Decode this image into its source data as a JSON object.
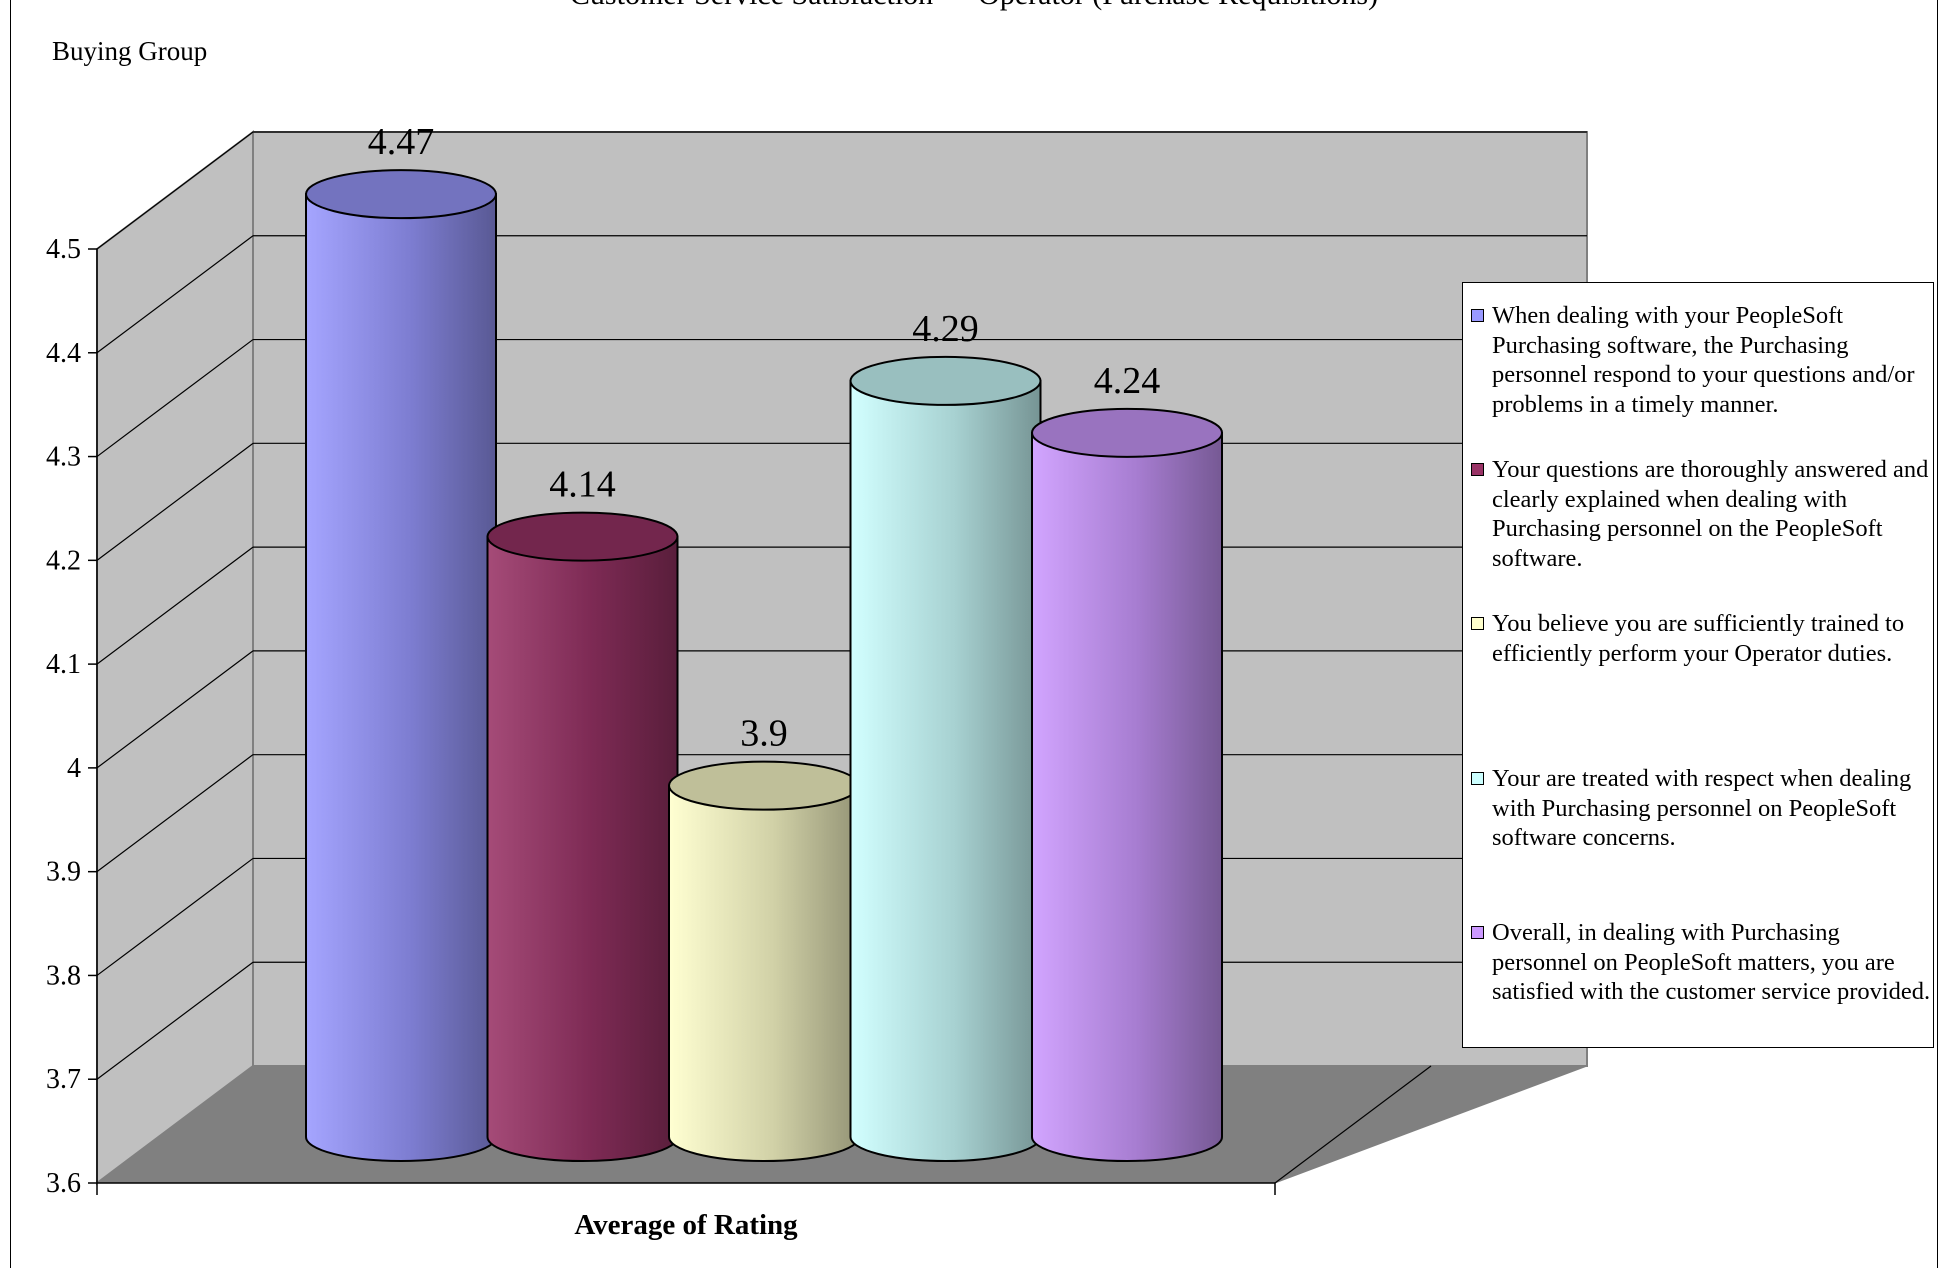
{
  "chart_data": {
    "type": "bar",
    "title": "Customer Service Satisfaction — Operator (Purchase Requisitions)",
    "pivot_label": "Buying Group",
    "xlabel": "Average of Rating",
    "ylabel": "",
    "ylim": [
      3.6,
      4.5
    ],
    "yticks": [
      "3.6",
      "3.7",
      "3.8",
      "3.9",
      "4",
      "4.1",
      "4.2",
      "4.3",
      "4.4",
      "4.5"
    ],
    "grid": true,
    "legend_position": "right",
    "categories": [
      "Average of Rating"
    ],
    "series": [
      {
        "name": "When dealing with your PeopleSoft Purchasing software, the Purchasing personnel respond to your questions and/or problems in a timely manner.",
        "values": [
          4.47
        ],
        "label": "4.47",
        "color": "#9999ff"
      },
      {
        "name": "Your questions are thoroughly answered and clearly explained when dealing with Purchasing personnel on the PeopleSoft software.",
        "values": [
          4.14
        ],
        "label": "4.14",
        "color": "#993366"
      },
      {
        "name": "You believe you are sufficiently trained to efficiently perform your Operator duties.",
        "values": [
          3.9
        ],
        "label": "3.9",
        "color": "#ffffcc"
      },
      {
        "name": "Your are treated with respect when dealing with Purchasing personnel on PeopleSoft software concerns.",
        "values": [
          4.29
        ],
        "label": "4.29",
        "color": "#ccffff"
      },
      {
        "name": "Overall, in dealing with Purchasing personnel on PeopleSoft matters, you are satisfied with the customer service provided.",
        "values": [
          4.24
        ],
        "label": "4.24",
        "color": "#cc99ff"
      }
    ]
  }
}
